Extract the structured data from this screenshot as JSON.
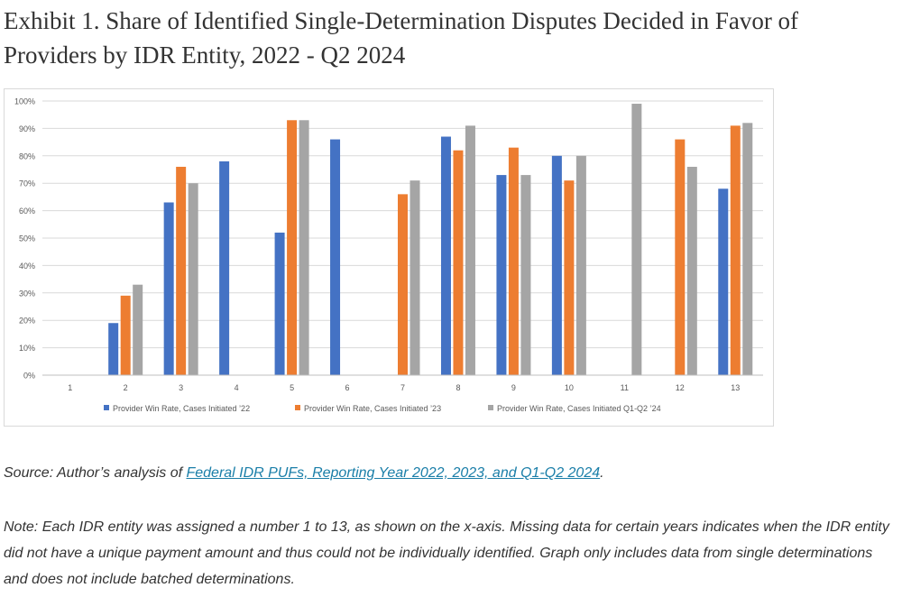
{
  "page": {
    "title": "Exhibit 1. Share of Identified Single-Determination Disputes Decided in Favor of Providers by IDR Entity, 2022 - Q2 2024",
    "source": {
      "prefix": "Source: Author’s analysis of ",
      "link_text": "Federal IDR PUFs, Reporting Year 2022, 2023, and Q1-Q2 2024",
      "suffix": "."
    },
    "note": "Note: Each IDR entity was assigned a number 1 to 13, as shown on the x-axis. Missing data for certain years indicates when the IDR entity did not have a unique payment amount and thus could not be individually identified. Graph only includes data from single determinations and does not include batched determinations."
  },
  "chart_data": {
    "type": "bar",
    "title": "",
    "xlabel": "",
    "ylabel": "",
    "ylim": [
      0,
      100
    ],
    "yticks": [
      0,
      10,
      20,
      30,
      40,
      50,
      60,
      70,
      80,
      90,
      100
    ],
    "ytick_labels": [
      "0%",
      "10%",
      "20%",
      "30%",
      "40%",
      "50%",
      "60%",
      "70%",
      "80%",
      "90%",
      "100%"
    ],
    "categories": [
      "1",
      "2",
      "3",
      "4",
      "5",
      "6",
      "7",
      "8",
      "9",
      "10",
      "11",
      "12",
      "13"
    ],
    "grid": true,
    "legend_position": "bottom",
    "series": [
      {
        "name": "Provider Win Rate, Cases Initiated ’22",
        "color": "#4472c4",
        "values": [
          null,
          19,
          63,
          78,
          52,
          86,
          null,
          87,
          73,
          80,
          null,
          null,
          68
        ]
      },
      {
        "name": "Provider Win Rate, Cases Initiated ’23",
        "color": "#ed7d31",
        "values": [
          null,
          29,
          76,
          null,
          93,
          null,
          66,
          82,
          83,
          71,
          null,
          86,
          91
        ]
      },
      {
        "name": "Provider Win Rate, Cases Initiated Q1-Q2 ’24",
        "color": "#a5a5a5",
        "values": [
          null,
          33,
          70,
          null,
          93,
          null,
          71,
          91,
          73,
          80,
          99,
          76,
          92
        ]
      }
    ]
  }
}
